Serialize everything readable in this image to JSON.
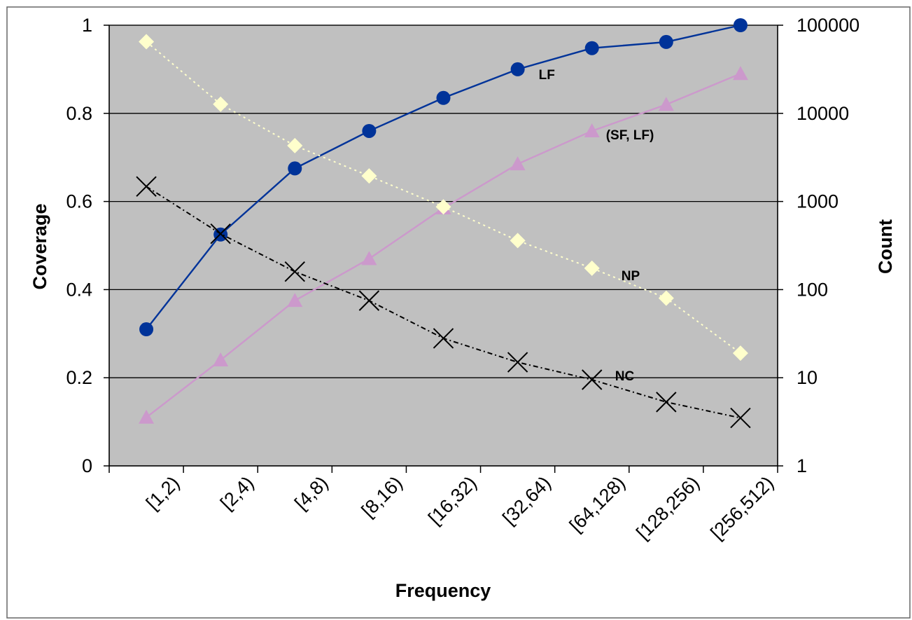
{
  "chart_data": {
    "type": "line",
    "categories": [
      "[1,2)",
      "[2,4)",
      "[4,8)",
      "[8,16)",
      "[16,32)",
      "[32,64)",
      "[64,128)",
      "[128,256)",
      "[256,512)"
    ],
    "xlabel": "Frequency",
    "ylabel": "Coverage",
    "y2label": "Count",
    "ylim": [
      0,
      1
    ],
    "y2lim": [
      1,
      100000
    ],
    "y2scale": "log",
    "yticks": [
      "0",
      "0.2",
      "0.4",
      "0.6",
      "0.8",
      "1"
    ],
    "y2ticks": [
      "1",
      "10",
      "100",
      "1000",
      "10000",
      "100000"
    ],
    "grid": "horizontal",
    "plot_background": "#c0c0c0",
    "series": [
      {
        "name": "LF",
        "axis": "left",
        "color": "#003399",
        "marker": "circle",
        "line": "solid",
        "values": [
          0.31,
          0.525,
          0.675,
          0.76,
          0.835,
          0.9,
          0.948,
          0.962,
          1.0
        ]
      },
      {
        "name": "(SF, LF)",
        "axis": "left",
        "color": "#cc99cc",
        "marker": "triangle",
        "line": "solid",
        "values": [
          0.11,
          0.24,
          0.375,
          0.47,
          0.585,
          0.685,
          0.76,
          0.82,
          0.89
        ]
      },
      {
        "name": "NP",
        "axis": "right",
        "color": "#ffffcc",
        "marker": "diamond",
        "line": "dotted",
        "values": [
          65000,
          12700,
          4300,
          1950,
          870,
          360,
          175,
          80,
          19
        ]
      },
      {
        "name": "NC",
        "axis": "right",
        "color": "#000000",
        "marker": "cross",
        "line": "dashdot",
        "values": [
          1480,
          430,
          160,
          75,
          28,
          15,
          9.5,
          5.3,
          3.5
        ]
      }
    ]
  }
}
